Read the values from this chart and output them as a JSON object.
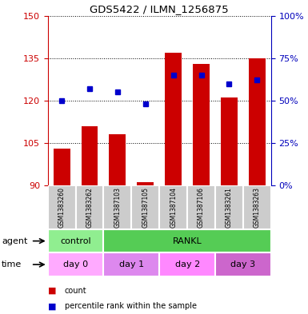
{
  "title": "GDS5422 / ILMN_1256875",
  "samples": [
    "GSM1383260",
    "GSM1383262",
    "GSM1387103",
    "GSM1387105",
    "GSM1387104",
    "GSM1387106",
    "GSM1383261",
    "GSM1383263"
  ],
  "counts": [
    103,
    111,
    108,
    91,
    137,
    133,
    121,
    135
  ],
  "percentiles": [
    50,
    57,
    55,
    48,
    65,
    65,
    60,
    62
  ],
  "y_min": 90,
  "y_max": 150,
  "y_ticks_left": [
    90,
    105,
    120,
    135,
    150
  ],
  "y_ticks_right": [
    0,
    25,
    50,
    75,
    100
  ],
  "bar_color": "#cc0000",
  "dot_color": "#0000cc",
  "agent_labels": [
    {
      "label": "control",
      "start": 0,
      "end": 2,
      "color": "#90ee90"
    },
    {
      "label": "RANKL",
      "start": 2,
      "end": 8,
      "color": "#55cc55"
    }
  ],
  "time_labels": [
    {
      "label": "day 0",
      "start": 0,
      "end": 2,
      "color": "#ffaaff"
    },
    {
      "label": "day 1",
      "start": 2,
      "end": 4,
      "color": "#dd88ee"
    },
    {
      "label": "day 2",
      "start": 4,
      "end": 6,
      "color": "#ff88ff"
    },
    {
      "label": "day 3",
      "start": 6,
      "end": 8,
      "color": "#cc66cc"
    }
  ],
  "legend_count_color": "#cc0000",
  "legend_dot_color": "#0000cc",
  "axis_color_left": "#cc0000",
  "axis_color_right": "#0000bb",
  "background_color": "#ffffff",
  "grid_color": "#000000",
  "sample_bg_color": "#cccccc",
  "sample_border_color": "#ffffff"
}
